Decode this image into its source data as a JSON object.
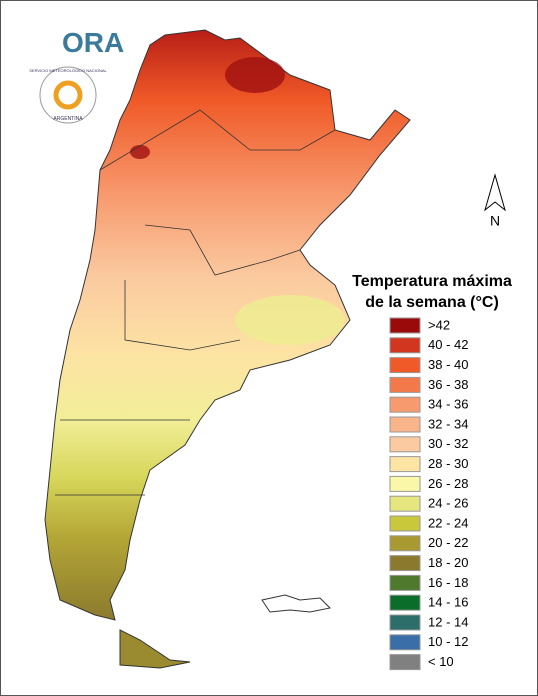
{
  "logo": {
    "name": "ORA",
    "agency": "SERVICIO METEOROLÓGICO NACIONAL",
    "country": "ARGENTINA"
  },
  "north_label": "N",
  "legend": {
    "title": [
      "Temperatura máxima",
      "de la semana (°C)"
    ],
    "items": [
      {
        "label": ">42",
        "color": "#9b0a0a"
      },
      {
        "label": "40 - 42",
        "color": "#d2361f"
      },
      {
        "label": "38 - 40",
        "color": "#f05a28"
      },
      {
        "label": "36 - 38",
        "color": "#f4794a"
      },
      {
        "label": "34 - 36",
        "color": "#f79a6e"
      },
      {
        "label": "32 - 34",
        "color": "#f9b48a"
      },
      {
        "label": "30 - 32",
        "color": "#fbcaa0"
      },
      {
        "label": "28 - 30",
        "color": "#fde3a4"
      },
      {
        "label": "26 - 28",
        "color": "#fbf7a8"
      },
      {
        "label": "24 - 26",
        "color": "#e6e67e"
      },
      {
        "label": "22 - 24",
        "color": "#c8c83a"
      },
      {
        "label": "20 - 22",
        "color": "#a89a30"
      },
      {
        "label": "18 - 20",
        "color": "#8b7a2e"
      },
      {
        "label": "16 - 18",
        "color": "#4f7a2e"
      },
      {
        "label": "14 - 16",
        "color": "#0a6e2a"
      },
      {
        "label": "12 - 14",
        "color": "#2e6e6a"
      },
      {
        "label": "10 - 12",
        "color": "#3a6ea8"
      },
      {
        "label": "< 10",
        "color": "#808080"
      }
    ]
  }
}
